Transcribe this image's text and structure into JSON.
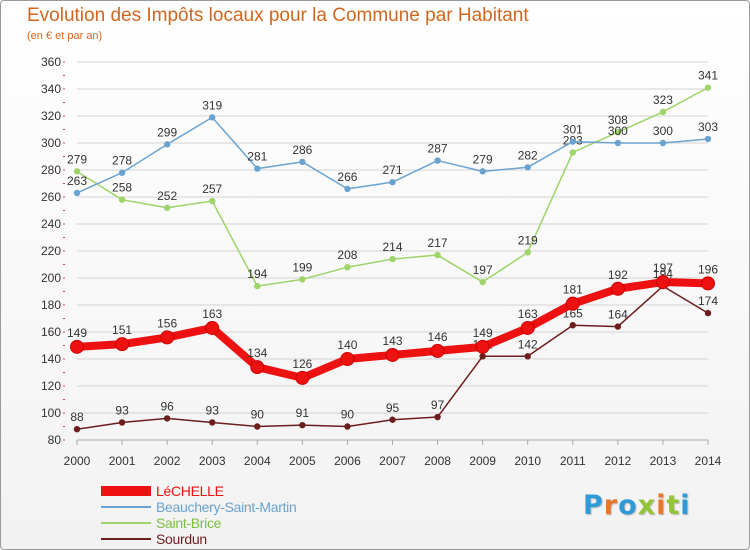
{
  "title": "Evolution des Impôts locaux pour la Commune par Habitant",
  "subtitle": "(en € et par an)",
  "logo": "Proxiti",
  "logo_letters": [
    "P",
    "r",
    "o",
    "x",
    "i",
    "t",
    "i"
  ],
  "colors": {
    "title": "#d2661f",
    "axis_text": "#333333",
    "gridline": "#d3d3d3",
    "axis_line": "#aaaaaa"
  },
  "chart_data": {
    "type": "line",
    "title": "Evolution des Impôts locaux pour la Commune par Habitant",
    "subtitle": "(en € et par an)",
    "x": [
      "2000",
      "2001",
      "2002",
      "2003",
      "2004",
      "2005",
      "2006",
      "2007",
      "2008",
      "2009",
      "2010",
      "2011",
      "2012",
      "2013",
      "2014"
    ],
    "ylim": [
      80,
      360
    ],
    "yticks": [
      80,
      100,
      120,
      140,
      160,
      180,
      200,
      220,
      240,
      260,
      280,
      300,
      320,
      340,
      360
    ],
    "grid": true,
    "legend_position": "bottom-left",
    "series": [
      {
        "name": "Sourdun",
        "color": "#6b1e1e",
        "values": [
          88,
          93,
          96,
          93,
          90,
          91,
          90,
          95,
          97,
          142,
          142,
          165,
          164,
          194,
          174
        ]
      },
      {
        "name": "Saint-Brice",
        "color": "#9ed46a",
        "values": [
          279,
          258,
          252,
          257,
          194,
          199,
          208,
          214,
          217,
          197,
          219,
          293,
          308,
          323,
          341
        ]
      },
      {
        "name": "Beauchery-Saint-Martin",
        "color": "#6ba3d0",
        "values": [
          263,
          278,
          299,
          319,
          281,
          286,
          266,
          271,
          287,
          279,
          282,
          301,
          300,
          300,
          303
        ]
      },
      {
        "name": "LéCHELLE",
        "color": "#ee1111",
        "values": [
          149,
          151,
          156,
          163,
          134,
          126,
          140,
          143,
          146,
          149,
          163,
          181,
          192,
          197,
          196
        ]
      }
    ]
  }
}
